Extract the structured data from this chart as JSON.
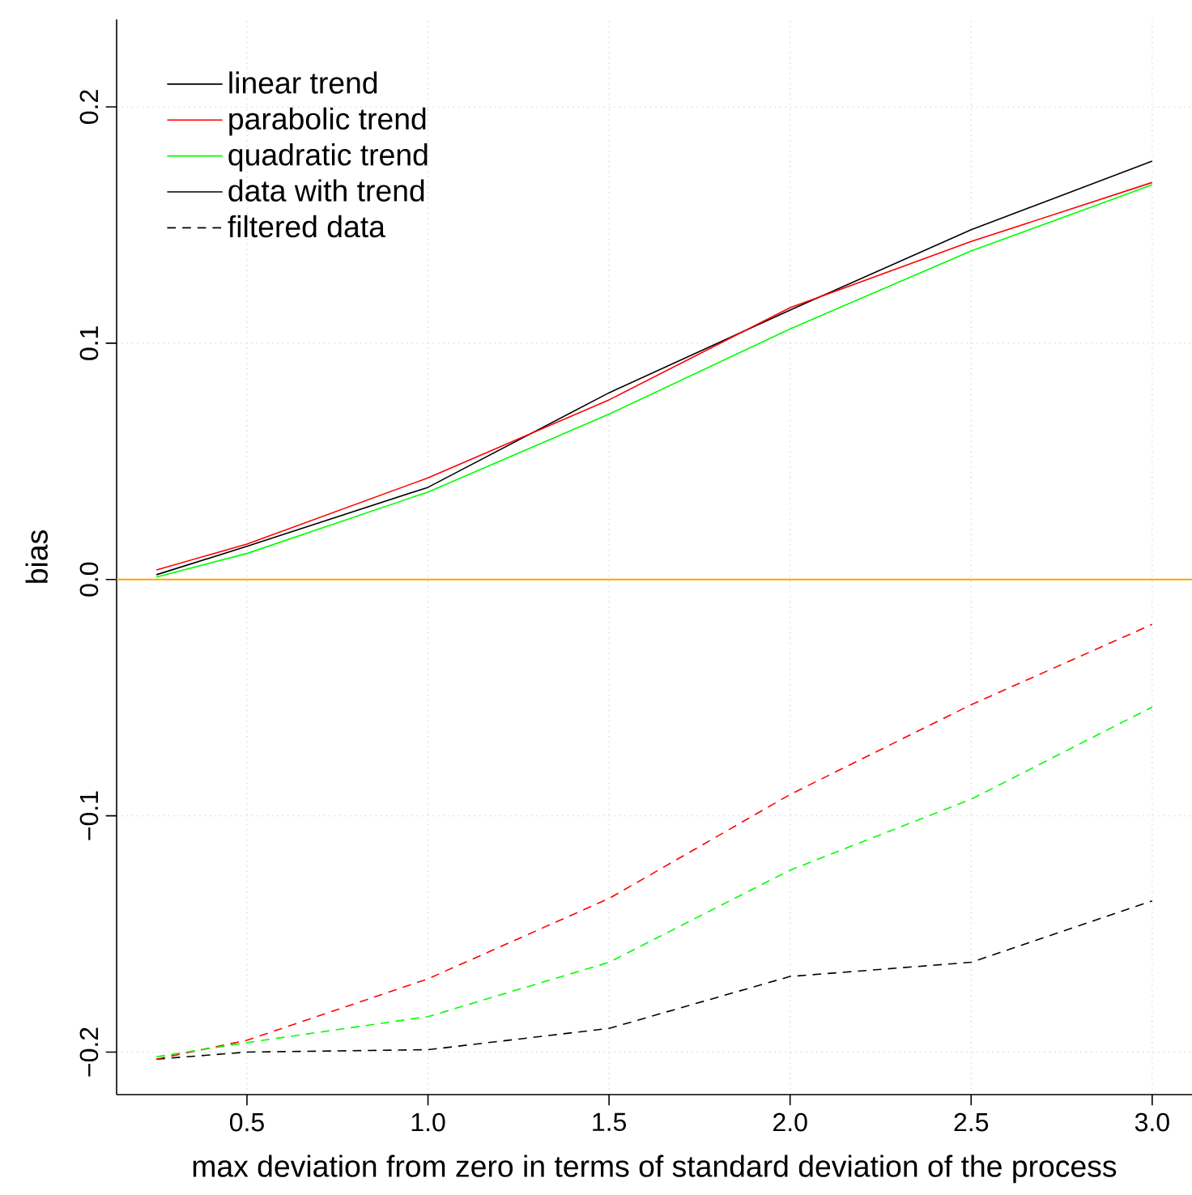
{
  "chart_data": {
    "type": "line",
    "xlabel": "max deviation from zero in terms of standard deviation of the process",
    "ylabel": "bias",
    "x": [
      0.25,
      0.5,
      1.0,
      1.5,
      2.0,
      2.5,
      3.0
    ],
    "series": [
      {
        "name": "linear trend",
        "color": "#000000",
        "line_style": "solid",
        "values": [
          0.002,
          0.014,
          0.039,
          0.079,
          0.114,
          0.148,
          0.177
        ]
      },
      {
        "name": "parabolic trend",
        "color": "#ff0000",
        "line_style": "solid",
        "values": [
          0.004,
          0.015,
          0.043,
          0.076,
          0.115,
          0.143,
          0.168
        ]
      },
      {
        "name": "quadratic trend",
        "color": "#00ff00",
        "line_style": "solid",
        "values": [
          0.001,
          0.011,
          0.037,
          0.07,
          0.106,
          0.139,
          0.167
        ]
      },
      {
        "name": "filtered data",
        "color": "#000000",
        "line_style": "dashed",
        "values": [
          -0.203,
          -0.2,
          -0.199,
          -0.19,
          -0.168,
          -0.162,
          -0.136
        ]
      },
      {
        "color": "#ff0000",
        "line_style": "dashed",
        "values": [
          -0.203,
          -0.195,
          -0.169,
          -0.135,
          -0.091,
          -0.053,
          -0.019
        ]
      },
      {
        "color": "#00ff00",
        "line_style": "dashed",
        "values": [
          -0.202,
          -0.196,
          -0.185,
          -0.162,
          -0.123,
          -0.093,
          -0.054
        ]
      }
    ],
    "annotations": [
      "data with trend"
    ],
    "ref_lines": [
      {
        "axis": "y",
        "value": 0,
        "color": "#ffa500"
      }
    ],
    "xlim": [
      0.14,
      3.11
    ],
    "ylim": [
      -0.218,
      0.237
    ],
    "xticks": [
      {
        "value": 0.5,
        "label": "0.5"
      },
      {
        "value": 1.0,
        "label": "1.0"
      },
      {
        "value": 1.5,
        "label": "1.5"
      },
      {
        "value": 2.0,
        "label": "2.0"
      },
      {
        "value": 2.5,
        "label": "2.5"
      },
      {
        "value": 3.0,
        "label": "3.0"
      }
    ],
    "yticks": [
      {
        "value": -0.2,
        "label": "−0.2"
      },
      {
        "value": -0.1,
        "label": "−0.1"
      },
      {
        "value": 0.0,
        "label": "0.0"
      },
      {
        "value": 0.1,
        "label": "0.1"
      },
      {
        "value": 0.2,
        "label": "0.2"
      }
    ],
    "grid": true,
    "legend": "top left",
    "marker": "none"
  }
}
